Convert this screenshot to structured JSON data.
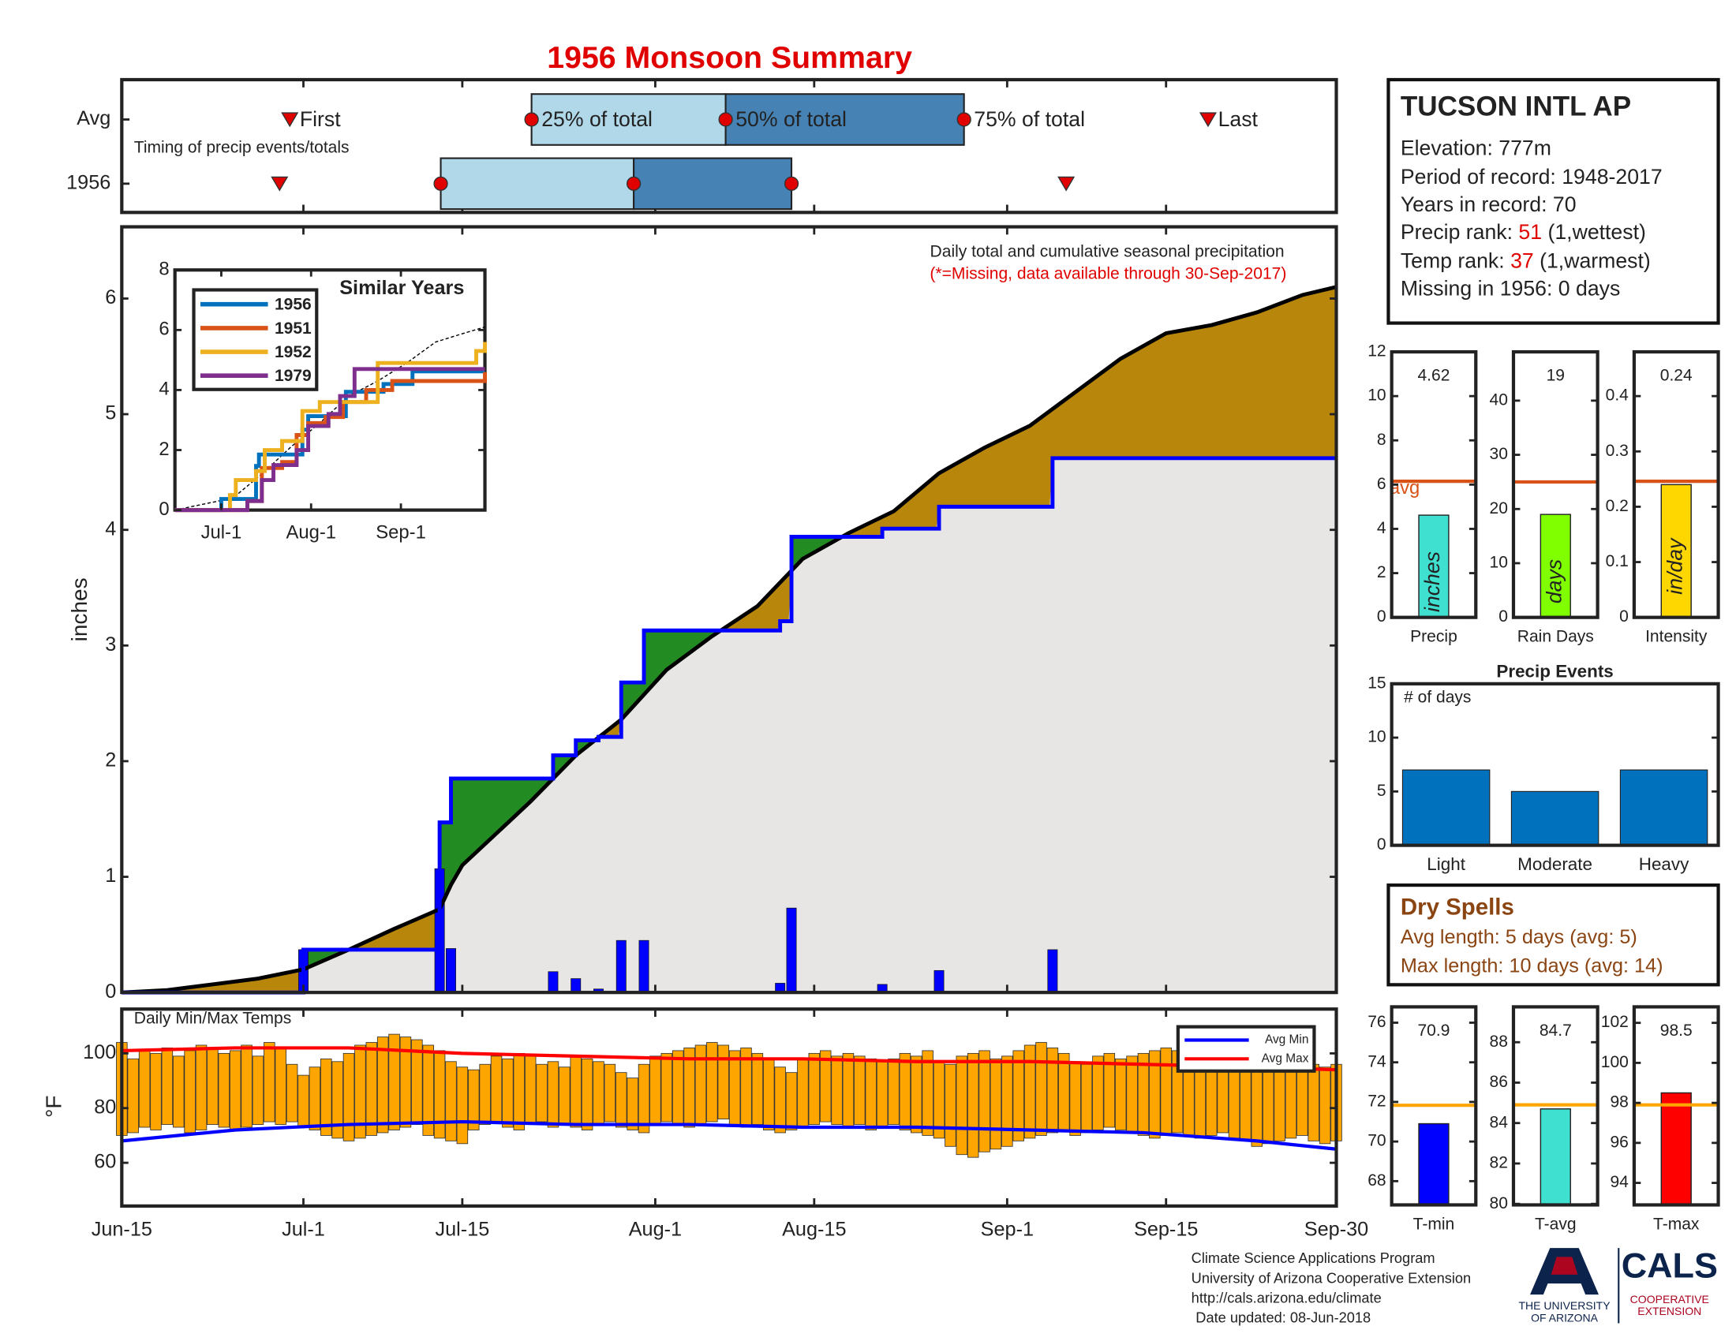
{
  "title": "1956 Monsoon Summary",
  "station": {
    "name": "TUCSON INTL AP",
    "elevation": "Elevation: 777m",
    "period": "Period of record: 1948-2017",
    "years": "Years in record: 70",
    "precip_rank": {
      "prefix": "Precip rank: ",
      "value": "51",
      "suffix": " (1,wettest)"
    },
    "temp_rank": {
      "prefix": "Temp rank: ",
      "value": "37",
      "suffix": " (1,warmest)"
    },
    "missing": "Missing in 1956: 0 days"
  },
  "dry_spells": {
    "title": "Dry Spells",
    "avg": "Avg length: 5 days (avg: 5)",
    "max": "Max length: 10 days (avg: 14)"
  },
  "footer": [
    "Climate Science Applications Program",
    "University of Arizona Cooperative Extension",
    "http://cals.arizona.edu/climate",
    "Date updated: 08-Jun-2018"
  ],
  "logo": {
    "university": [
      "THE UNIVERSITY",
      "OF ARIZONA"
    ],
    "cals": "CALS",
    "extension": [
      "COOPERATIVE",
      "EXTENSION"
    ]
  },
  "chart_data": [
    {
      "type": "timing",
      "note": "Timing of precip events/totals",
      "marker_labels": [
        "First",
        "25% of total",
        "50% of total",
        "75% of total",
        "Last"
      ],
      "light_color": "#b0d8e8",
      "dark_color": "#4682b4",
      "marker_color": "#e00000",
      "series": [
        {
          "name": "Avg",
          "values": [
            14.8,
            36.1,
            53.2,
            74.2,
            95.7
          ]
        },
        {
          "name": "1956",
          "values": [
            13.9,
            28.1,
            45.1,
            59.0,
            83.2
          ]
        }
      ]
    },
    {
      "type": "step",
      "note": "Daily total and cumulative seasonal precipitation",
      "missing_note": "(*=Missing, data available through 30-Sep-2017)",
      "ylabel": "inches",
      "xlim": [
        0,
        107
      ],
      "xticks": [
        {
          "value": 0,
          "label": "Jun-15"
        },
        {
          "value": 16,
          "label": "Jul-1"
        },
        {
          "value": 30,
          "label": "Jul-15"
        },
        {
          "value": 47,
          "label": "Aug-1"
        },
        {
          "value": 61,
          "label": "Aug-15"
        },
        {
          "value": 78,
          "label": "Sep-1"
        },
        {
          "value": 92,
          "label": "Sep-15"
        },
        {
          "value": 107,
          "label": "Sep-30"
        }
      ],
      "ylim": [
        0,
        6.62
      ],
      "yticks": [
        0,
        1,
        2,
        3,
        4,
        5,
        6
      ],
      "above_color": "#228b22",
      "below_color": "#b8860b",
      "base_color": "#e8e6e4",
      "daily": {
        "color": "#0000ff",
        "x": [
          16,
          28,
          29,
          38,
          40,
          42,
          44,
          46,
          58,
          59,
          67,
          72,
          82
        ],
        "values": [
          0.37,
          1.07,
          0.38,
          0.18,
          0.12,
          0.03,
          0.45,
          0.45,
          0.08,
          0.73,
          0.07,
          0.19,
          0.37
        ]
      },
      "cumulative": {
        "color": "#0000ff",
        "x": [
          0,
          16,
          28,
          29,
          38,
          40,
          42,
          44,
          46,
          58,
          59,
          67,
          72,
          82,
          107
        ],
        "values": [
          0,
          0.37,
          1.47,
          1.85,
          2.05,
          2.18,
          2.21,
          2.68,
          3.13,
          3.21,
          3.94,
          4.01,
          4.2,
          4.62,
          4.62
        ]
      },
      "average": {
        "color": "#000000",
        "x": [
          0,
          4,
          8,
          12,
          16,
          20,
          24,
          28,
          29,
          30,
          36,
          40,
          44,
          48,
          52,
          56,
          60,
          64,
          68,
          72,
          76,
          80,
          84,
          88,
          92,
          96,
          100,
          104,
          107
        ],
        "values": [
          0,
          0.02,
          0.07,
          0.12,
          0.2,
          0.37,
          0.55,
          0.72,
          0.93,
          1.1,
          1.65,
          2.05,
          2.36,
          2.79,
          3.08,
          3.34,
          3.75,
          3.97,
          4.16,
          4.49,
          4.71,
          4.9,
          5.19,
          5.48,
          5.7,
          5.77,
          5.88,
          6.03,
          6.1
        ]
      }
    },
    {
      "type": "line",
      "title": "Similar Years",
      "xlim": [
        0,
        107
      ],
      "xticks": [
        {
          "value": 16,
          "label": "Jul-1"
        },
        {
          "value": 47,
          "label": "Aug-1"
        },
        {
          "value": 78,
          "label": "Sep-1"
        }
      ],
      "ylim": [
        0,
        8
      ],
      "yticks": [
        0,
        2,
        4,
        6,
        8
      ],
      "series": [
        {
          "name": "1956",
          "color": "#0072bd",
          "x": [
            0,
            16,
            28,
            29,
            44,
            46,
            59,
            72,
            82,
            107
          ],
          "values": [
            0,
            0.37,
            1.47,
            1.85,
            2.68,
            3.13,
            3.94,
            4.2,
            4.62,
            4.62
          ]
        },
        {
          "name": "1951",
          "color": "#d95319",
          "x": [
            0,
            25,
            30,
            37,
            42,
            46,
            52,
            58,
            66,
            75,
            107
          ],
          "values": [
            0,
            0.3,
            1.4,
            1.6,
            2.5,
            2.9,
            3.1,
            3.6,
            4.0,
            4.3,
            4.6
          ]
        },
        {
          "name": "1952",
          "color": "#edb120",
          "x": [
            0,
            19,
            21,
            28,
            31,
            37,
            44,
            50,
            60,
            70,
            100,
            104,
            107
          ],
          "values": [
            0,
            0.5,
            1.0,
            1.3,
            2.0,
            2.3,
            3.3,
            3.6,
            3.6,
            4.9,
            4.9,
            5.3,
            5.6
          ]
        },
        {
          "name": "1979",
          "color": "#7e2f8e",
          "x": [
            0,
            25,
            30,
            34,
            42,
            46,
            53,
            57,
            62,
            107
          ],
          "values": [
            0,
            0.3,
            1.0,
            1.5,
            2.0,
            2.8,
            3.2,
            3.8,
            4.7,
            4.7
          ]
        }
      ],
      "average": {
        "color": "#000000",
        "x": [
          0,
          20,
          30,
          40,
          50,
          60,
          70,
          80,
          90,
          100,
          107
        ],
        "values": [
          0,
          0.4,
          1.2,
          2.1,
          2.9,
          3.8,
          4.3,
          4.9,
          5.6,
          5.9,
          6.1
        ]
      }
    },
    {
      "type": "range",
      "title": "Daily Min/Max Temps",
      "ylabel": "°F",
      "ylim": [
        44.2,
        116.2
      ],
      "yticks": [
        60,
        80,
        100
      ],
      "bar_color": "#ffa500",
      "max": [
        104,
        98,
        101,
        100,
        102,
        99,
        101,
        103,
        102,
        100,
        101,
        103,
        99,
        104,
        102,
        96,
        92,
        95,
        98,
        97,
        100,
        103,
        104,
        106,
        107,
        106,
        105,
        103,
        101,
        97,
        95,
        94,
        96,
        99,
        98,
        100,
        99,
        96,
        97,
        95,
        99,
        98,
        97,
        96,
        93,
        91,
        96,
        99,
        100,
        101,
        102,
        103,
        104,
        103,
        101,
        102,
        100,
        98,
        95,
        93,
        98,
        100,
        101,
        99,
        100,
        99,
        98,
        97,
        98,
        100,
        99,
        101,
        97,
        96,
        99,
        100,
        101,
        98,
        99,
        101,
        103,
        104,
        102,
        100,
        97,
        96,
        99,
        100,
        98,
        99,
        100,
        101,
        102,
        101,
        100,
        99,
        98,
        100,
        101,
        99,
        98,
        97,
        96,
        95,
        97,
        96,
        95,
        96
      ],
      "min": [
        70,
        71,
        73,
        72,
        74,
        73,
        71,
        72,
        74,
        73,
        72,
        73,
        74,
        75,
        74,
        75,
        73,
        72,
        70,
        69,
        68,
        69,
        70,
        71,
        72,
        73,
        74,
        70,
        69,
        68,
        67,
        72,
        74,
        75,
        73,
        72,
        74,
        75,
        73,
        74,
        73,
        72,
        74,
        75,
        73,
        72,
        71,
        74,
        75,
        74,
        73,
        74,
        75,
        76,
        74,
        73,
        74,
        72,
        71,
        72,
        73,
        74,
        75,
        74,
        73,
        74,
        72,
        73,
        74,
        72,
        71,
        70,
        69,
        66,
        63,
        62,
        64,
        65,
        66,
        68,
        69,
        70,
        71,
        72,
        70,
        71,
        72,
        73,
        72,
        71,
        70,
        69,
        70,
        71,
        70,
        69,
        70,
        71,
        69,
        68,
        66,
        67,
        68,
        69,
        70,
        68,
        67,
        68
      ],
      "series": [
        {
          "name": "Avg Min",
          "color": "#0000ff",
          "x": [
            0,
            10,
            20,
            30,
            40,
            50,
            60,
            70,
            80,
            90,
            100,
            107
          ],
          "values": [
            68,
            72,
            74,
            75,
            74,
            74,
            73,
            73,
            72,
            71,
            68,
            65
          ]
        },
        {
          "name": "Avg Max",
          "color": "#ff0000",
          "x": [
            0,
            10,
            20,
            30,
            40,
            50,
            60,
            70,
            80,
            90,
            100,
            107
          ],
          "values": [
            101,
            102,
            102,
            100,
            99,
            98,
            98,
            97,
            97,
            96,
            95,
            94
          ]
        }
      ]
    },
    {
      "type": "bar",
      "xlabel": "Precip",
      "unit": "inches",
      "value": 4.62,
      "avg": 6.15,
      "avg_label": "avg",
      "color": "#40e0d0",
      "avg_color": "#d95319",
      "ylim": [
        0,
        12
      ],
      "yticks": [
        0,
        2,
        4,
        6,
        8,
        10,
        12
      ]
    },
    {
      "type": "bar",
      "xlabel": "Rain Days",
      "unit": "days",
      "value": 19,
      "avg": 25,
      "color": "#7fff00",
      "avg_color": "#d95319",
      "ylim": [
        0,
        49
      ],
      "yticks": [
        0,
        10,
        20,
        30,
        40
      ]
    },
    {
      "type": "bar",
      "xlabel": "Intensity",
      "unit": "in/day",
      "value": 0.24,
      "avg": 0.246,
      "color": "#ffd700",
      "avg_color": "#d95319",
      "ylim": [
        0,
        0.48
      ],
      "yticks": [
        0,
        0.1,
        0.2,
        0.3,
        0.4
      ]
    },
    {
      "type": "bar",
      "title": "Precip Events",
      "note": "# of days",
      "categories": [
        "Light",
        "Moderate",
        "Heavy"
      ],
      "values": [
        7,
        5,
        7
      ],
      "color": "#0072bd",
      "ylim": [
        0,
        15
      ],
      "yticks": [
        0,
        5,
        10,
        15
      ]
    },
    {
      "type": "bar",
      "xlabel": "T-min",
      "value": 70.9,
      "avg": 71.83,
      "color": "#0000ff",
      "avg_color": "#ffa500",
      "ylim": [
        66.8,
        76.8
      ],
      "yticks": [
        68,
        70,
        72,
        74,
        76
      ]
    },
    {
      "type": "bar",
      "xlabel": "T-avg",
      "value": 84.7,
      "avg": 84.9,
      "color": "#40e0d0",
      "avg_color": "#ffa500",
      "ylim": [
        79.95,
        89.75
      ],
      "yticks": [
        80,
        82,
        84,
        86,
        88
      ]
    },
    {
      "type": "bar",
      "xlabel": "T-max",
      "value": 98.5,
      "avg": 97.9,
      "color": "#ff0000",
      "avg_color": "#ffa500",
      "ylim": [
        92.9,
        102.8
      ],
      "yticks": [
        94,
        96,
        98,
        100,
        102
      ]
    }
  ]
}
